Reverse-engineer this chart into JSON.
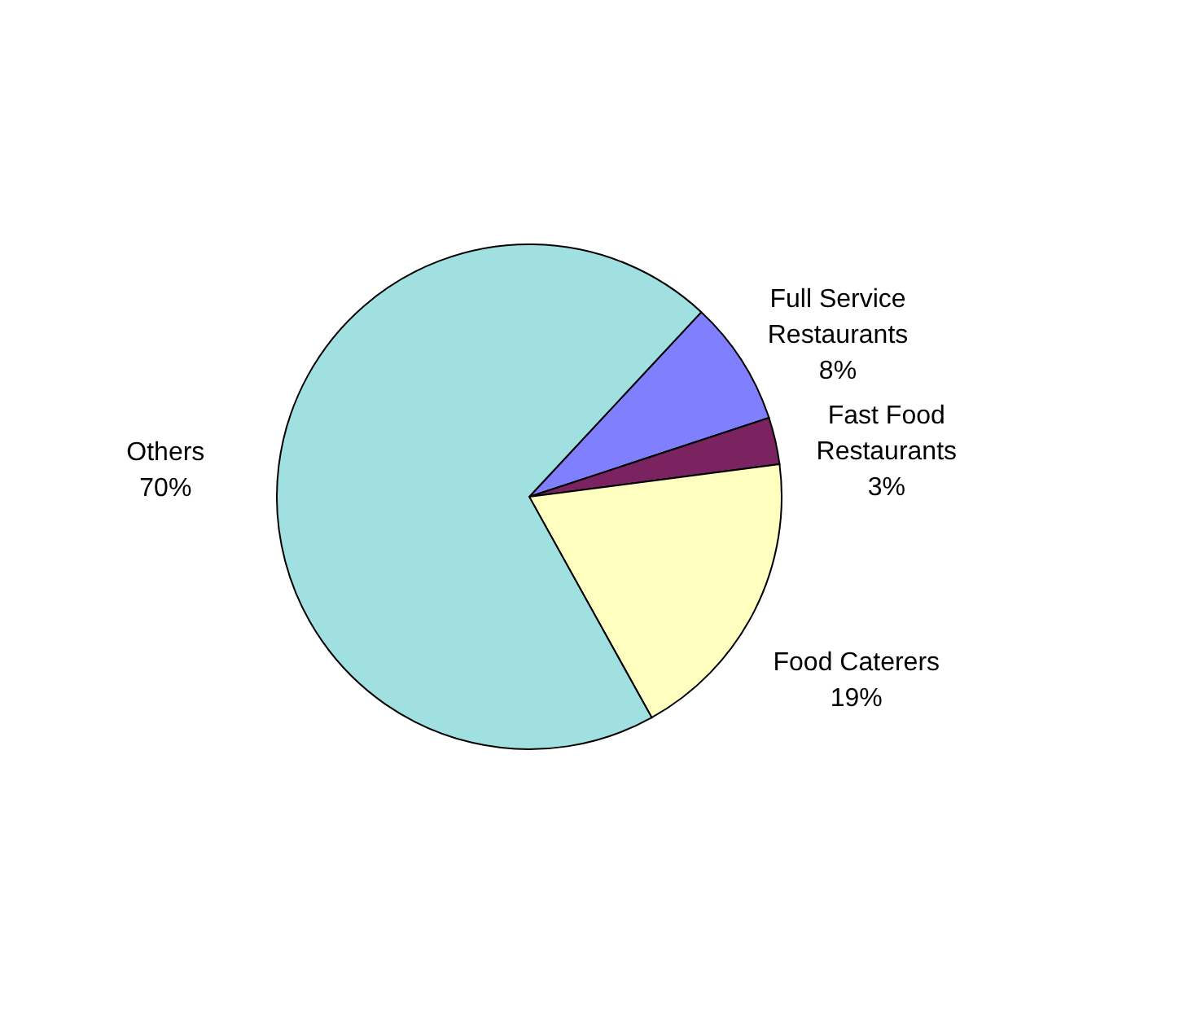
{
  "chart_data": {
    "type": "pie",
    "categories": [
      "Full Service Restaurants",
      "Fast Food Restaurants",
      "Food Caterers",
      "Others"
    ],
    "values": [
      8,
      3,
      19,
      70
    ],
    "colors": [
      "#8080ff",
      "#7b2260",
      "#ffffc0",
      "#a0e0e0"
    ],
    "value_labels": [
      "8%",
      "3%",
      "19%",
      "70%"
    ],
    "legend": false
  }
}
